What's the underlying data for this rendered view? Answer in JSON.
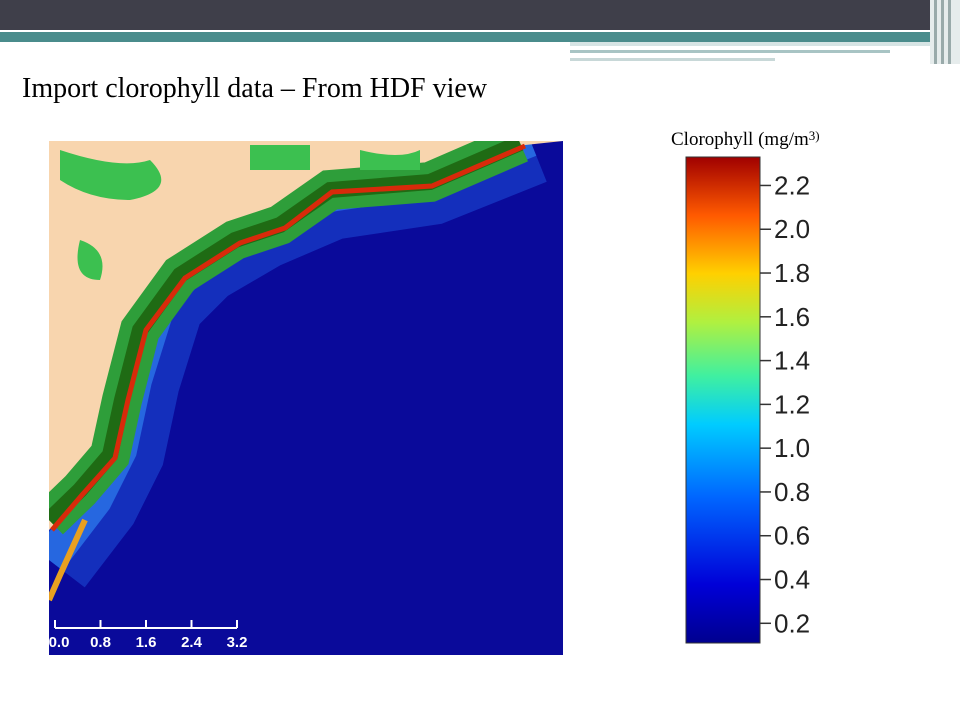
{
  "title": "Import clorophyll data – From HDF view",
  "colorbar": {
    "label": "Clorophyll (mg/m",
    "label_superscript": "3)",
    "range": [
      0.11,
      2.33
    ],
    "ticks": [
      0.2,
      0.4,
      0.6,
      0.8,
      {
        "value": 1,
        "label": "1.0"
      },
      1.2,
      1.4,
      1.6,
      1.8,
      {
        "value": 2,
        "label": "2.0"
      },
      2.2
    ]
  },
  "scale_bar": {
    "labels": [
      "0.0",
      "0.8",
      "1.6",
      "2.4",
      "3.2"
    ]
  }
}
